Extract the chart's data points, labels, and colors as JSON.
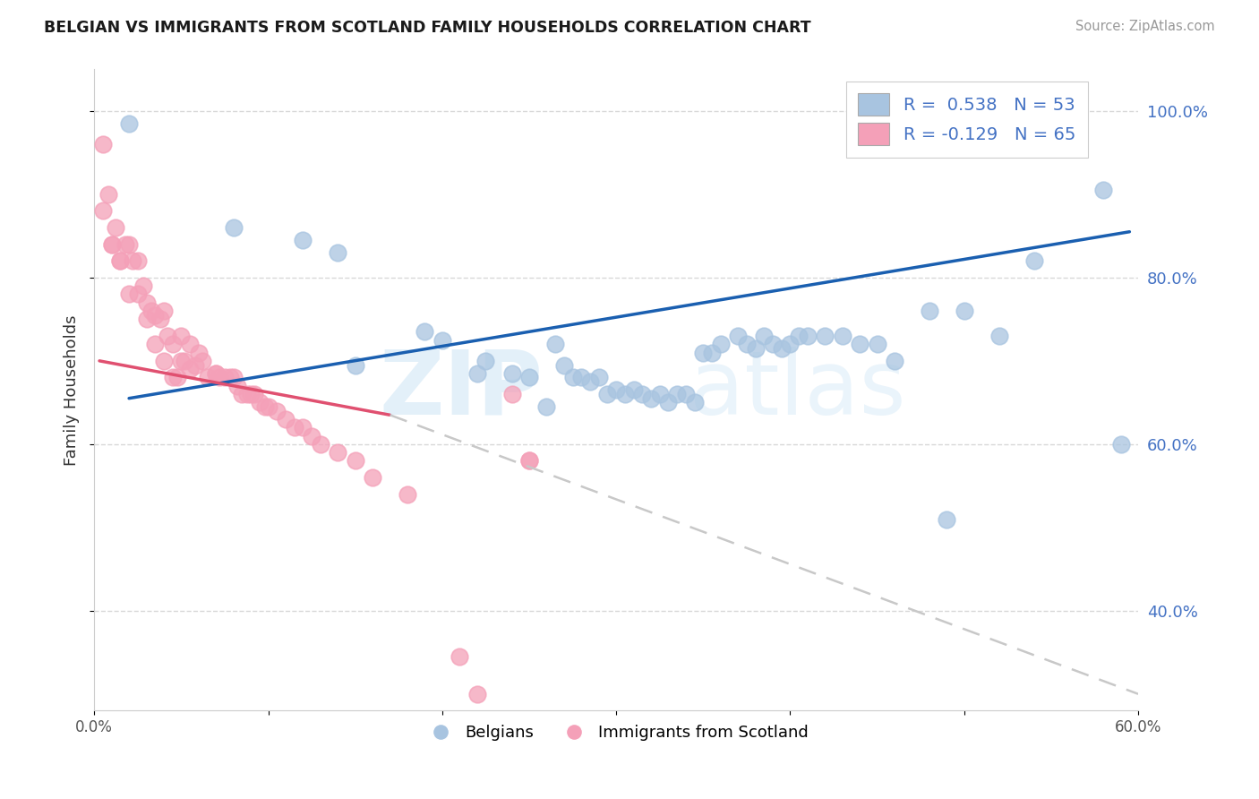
{
  "title": "BELGIAN VS IMMIGRANTS FROM SCOTLAND FAMILY HOUSEHOLDS CORRELATION CHART",
  "source": "Source: ZipAtlas.com",
  "ylabel": "Family Households",
  "xlim": [
    0.0,
    0.6
  ],
  "ylim": [
    0.28,
    1.05
  ],
  "x_ticks": [
    0.0,
    0.1,
    0.2,
    0.3,
    0.4,
    0.5,
    0.6
  ],
  "y_ticks": [
    0.4,
    0.6,
    0.8,
    1.0
  ],
  "blue_color": "#a8c4e0",
  "pink_color": "#f4a0b8",
  "blue_line_color": "#1a5fb0",
  "pink_line_color": "#e05070",
  "dashed_line_color": "#c8c8c8",
  "legend_R_blue": "R =  0.538   N = 53",
  "legend_R_pink": "R = -0.129   N = 65",
  "watermark_zip": "ZIP",
  "watermark_atlas": "atlas",
  "grid_color": "#d8d8d8",
  "blue_scatter_x": [
    0.02,
    0.08,
    0.12,
    0.14,
    0.15,
    0.19,
    0.2,
    0.22,
    0.225,
    0.24,
    0.25,
    0.26,
    0.265,
    0.27,
    0.275,
    0.28,
    0.285,
    0.29,
    0.295,
    0.3,
    0.305,
    0.31,
    0.315,
    0.32,
    0.325,
    0.33,
    0.335,
    0.34,
    0.345,
    0.35,
    0.355,
    0.36,
    0.37,
    0.375,
    0.38,
    0.385,
    0.39,
    0.395,
    0.4,
    0.405,
    0.41,
    0.42,
    0.43,
    0.44,
    0.45,
    0.46,
    0.48,
    0.49,
    0.5,
    0.52,
    0.54,
    0.58,
    0.59
  ],
  "blue_scatter_y": [
    0.985,
    0.86,
    0.845,
    0.83,
    0.695,
    0.735,
    0.725,
    0.685,
    0.7,
    0.685,
    0.68,
    0.645,
    0.72,
    0.695,
    0.68,
    0.68,
    0.675,
    0.68,
    0.66,
    0.665,
    0.66,
    0.665,
    0.66,
    0.655,
    0.66,
    0.65,
    0.66,
    0.66,
    0.65,
    0.71,
    0.71,
    0.72,
    0.73,
    0.72,
    0.715,
    0.73,
    0.72,
    0.715,
    0.72,
    0.73,
    0.73,
    0.73,
    0.73,
    0.72,
    0.72,
    0.7,
    0.76,
    0.51,
    0.76,
    0.73,
    0.82,
    0.905,
    0.6
  ],
  "pink_scatter_x": [
    0.005,
    0.005,
    0.008,
    0.01,
    0.01,
    0.012,
    0.015,
    0.015,
    0.018,
    0.02,
    0.02,
    0.022,
    0.025,
    0.025,
    0.028,
    0.03,
    0.03,
    0.033,
    0.035,
    0.035,
    0.038,
    0.04,
    0.04,
    0.042,
    0.045,
    0.045,
    0.048,
    0.05,
    0.05,
    0.052,
    0.055,
    0.055,
    0.058,
    0.06,
    0.062,
    0.065,
    0.07,
    0.07,
    0.072,
    0.075,
    0.078,
    0.08,
    0.082,
    0.085,
    0.088,
    0.09,
    0.092,
    0.095,
    0.098,
    0.1,
    0.105,
    0.11,
    0.115,
    0.12,
    0.125,
    0.13,
    0.14,
    0.15,
    0.16,
    0.18,
    0.21,
    0.22,
    0.24,
    0.25,
    0.25
  ],
  "pink_scatter_y": [
    0.96,
    0.88,
    0.9,
    0.84,
    0.84,
    0.86,
    0.82,
    0.82,
    0.84,
    0.84,
    0.78,
    0.82,
    0.82,
    0.78,
    0.79,
    0.77,
    0.75,
    0.76,
    0.755,
    0.72,
    0.75,
    0.76,
    0.7,
    0.73,
    0.72,
    0.68,
    0.68,
    0.73,
    0.7,
    0.7,
    0.72,
    0.69,
    0.695,
    0.71,
    0.7,
    0.68,
    0.685,
    0.685,
    0.68,
    0.68,
    0.68,
    0.68,
    0.67,
    0.66,
    0.66,
    0.66,
    0.66,
    0.65,
    0.645,
    0.645,
    0.64,
    0.63,
    0.62,
    0.62,
    0.61,
    0.6,
    0.59,
    0.58,
    0.56,
    0.54,
    0.345,
    0.3,
    0.66,
    0.58,
    0.58
  ]
}
